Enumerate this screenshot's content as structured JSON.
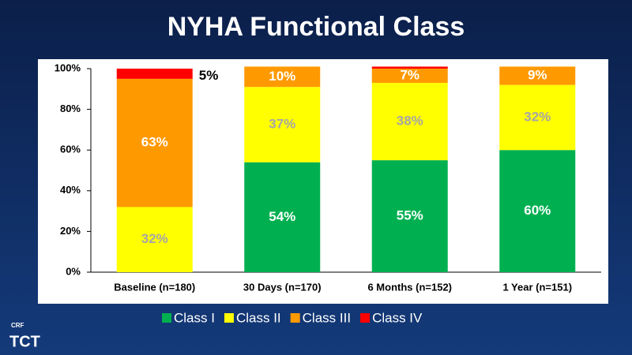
{
  "chart_data": {
    "type": "stacked_bar",
    "title": "NYHA Functional Class",
    "categories": [
      "Baseline (n=180)",
      "30 Days (n=170)",
      "6 Months (n=152)",
      "1 Year (n=151)"
    ],
    "series": [
      {
        "name": "Class I",
        "color": "#00b050",
        "label_color": "#ffffff",
        "values": [
          0,
          54,
          55,
          60
        ],
        "value_labels": [
          null,
          "54%",
          "55%",
          "60%"
        ]
      },
      {
        "name": "Class II",
        "color": "#ffff00",
        "label_color": "#a6a6a6",
        "values": [
          32,
          37,
          38,
          32
        ],
        "value_labels": [
          "32%",
          "37%",
          "38%",
          "32%"
        ]
      },
      {
        "name": "Class III",
        "color": "#ff9900",
        "label_color": "#ffffff",
        "values": [
          63,
          10,
          7,
          9
        ],
        "value_labels": [
          "63%",
          "10%",
          "7%",
          "9%"
        ]
      },
      {
        "name": "Class IV",
        "color": "#ff0000",
        "label_color": "#000000",
        "values": [
          5,
          0,
          1,
          0
        ],
        "value_labels": [
          "5%",
          null,
          null,
          null
        ]
      }
    ],
    "ylim": [
      0,
      100
    ],
    "yticks": [
      {
        "value": 0,
        "label": "0%"
      },
      {
        "value": 20,
        "label": "20%"
      },
      {
        "value": 40,
        "label": "40%"
      },
      {
        "value": 60,
        "label": "60%"
      },
      {
        "value": 80,
        "label": "80%"
      },
      {
        "value": 100,
        "label": "100%"
      }
    ],
    "grid": false,
    "legend": "bottom"
  },
  "branding": {
    "org": "CRF",
    "meeting": "TCT"
  }
}
